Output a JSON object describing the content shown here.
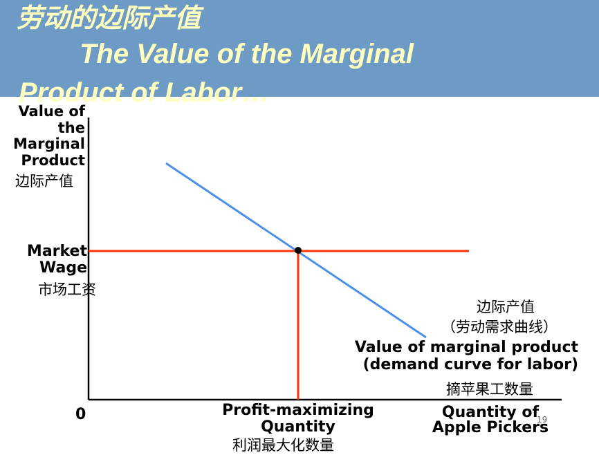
{
  "slide": {
    "title_cn": "劳动的边际产值",
    "title_en_line1": "The Value of the Marginal",
    "title_en_line2": "Product of Labor…",
    "page_number": "19"
  },
  "colors": {
    "header_bg": "#6e9bc6",
    "title_text": "#ffffc0",
    "demand_curve": "#4a90e8",
    "wage_line": "#ff3300",
    "axis": "#000000"
  },
  "diagram": {
    "y_axis_label": [
      "Value of",
      "the",
      "Marginal",
      "Product"
    ],
    "y_axis_label_cn": "边际产值",
    "market_wage_label": [
      "Market",
      "Wage"
    ],
    "market_wage_label_cn": "市场工资",
    "origin_label": "0",
    "curve_label_cn_1": "边际产值",
    "curve_label_cn_2": "（劳动需求曲线）",
    "curve_label_en_1": "Value of marginal product",
    "curve_label_en_2": "(demand curve for labor)",
    "x_axis_label_cn": "摘苹果工数量",
    "x_axis_label": [
      "Quantity of",
      "Apple Pickers"
    ],
    "profit_max_label": [
      "Profit-maximizing",
      "Quantity"
    ],
    "profit_max_label_cn": "利润最大化数量"
  }
}
